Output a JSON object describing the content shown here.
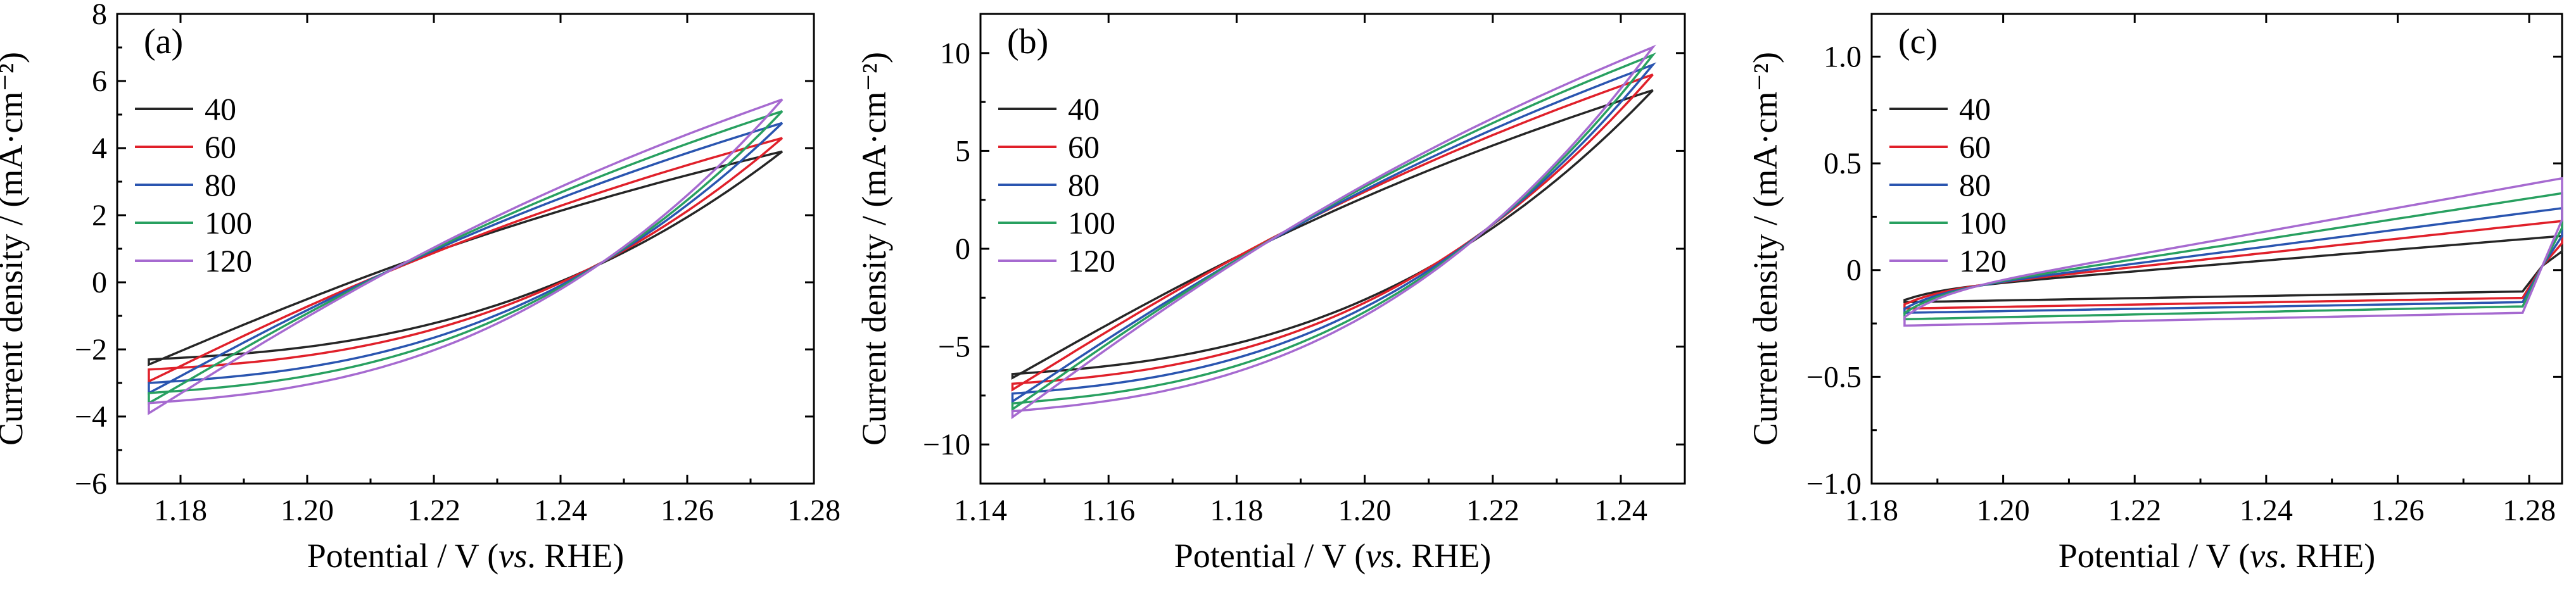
{
  "colors": {
    "40": "#262626",
    "60": "#e0202a",
    "80": "#2a55b0",
    "100": "#28a060",
    "120": "#a66ad0"
  },
  "chart_data": [
    {
      "type": "line",
      "panel_label": "(a)",
      "xlabel_pre": "Potential / V (",
      "xlabel_italic": "vs",
      "xlabel_post": ". RHE)",
      "ylabel": "Current density / (mA·cm⁻²)",
      "xlim": [
        1.17,
        1.28
      ],
      "ylim": [
        -6,
        8
      ],
      "x_ticks": [
        1.18,
        1.2,
        1.22,
        1.24,
        1.26,
        1.28
      ],
      "y_ticks": [
        -6,
        -4,
        -2,
        0,
        2,
        4,
        6,
        8
      ],
      "x_tick_labels": [
        "1.18",
        "1.20",
        "1.22",
        "1.24",
        "1.26",
        "1.28"
      ],
      "y_tick_labels": [
        "−6",
        "−4",
        "−2",
        "0",
        "2",
        "4",
        "6",
        "8"
      ],
      "legend": [
        "40",
        "60",
        "80",
        "100",
        "120"
      ],
      "legend_position": "top-left",
      "series": [
        {
          "name": "40",
          "x_min": 1.175,
          "x_max": 1.275,
          "j_max": 3.9,
          "j_min": -2.45,
          "j_min_return": -2.3
        },
        {
          "name": "60",
          "x_min": 1.175,
          "x_max": 1.275,
          "j_max": 4.3,
          "j_min": -2.95,
          "j_min_return": -2.6
        },
        {
          "name": "80",
          "x_min": 1.175,
          "x_max": 1.275,
          "j_max": 4.75,
          "j_min": -3.3,
          "j_min_return": -3.0
        },
        {
          "name": "100",
          "x_min": 1.175,
          "x_max": 1.275,
          "j_max": 5.1,
          "j_min": -3.6,
          "j_min_return": -3.3
        },
        {
          "name": "120",
          "x_min": 1.175,
          "x_max": 1.275,
          "j_max": 5.45,
          "j_min": -3.9,
          "j_min_return": -3.6
        }
      ]
    },
    {
      "type": "line",
      "panel_label": "(b)",
      "xlabel_pre": "Potential / V (",
      "xlabel_italic": "vs",
      "xlabel_post": ". RHE)",
      "ylabel": "Current density / (mA·cm⁻²)",
      "xlim": [
        1.14,
        1.25
      ],
      "ylim": [
        -12,
        12
      ],
      "x_ticks": [
        1.14,
        1.16,
        1.18,
        1.2,
        1.22,
        1.24
      ],
      "y_ticks": [
        -10,
        -5,
        0,
        5,
        10
      ],
      "x_tick_labels": [
        "1.14",
        "1.16",
        "1.18",
        "1.20",
        "1.22",
        "1.24"
      ],
      "y_tick_labels": [
        "−10",
        "−5",
        "0",
        "5",
        "10"
      ],
      "legend": [
        "40",
        "60",
        "80",
        "100",
        "120"
      ],
      "legend_position": "top-left",
      "series": [
        {
          "name": "40",
          "x_min": 1.145,
          "x_max": 1.245,
          "j_max": 8.1,
          "j_min": -6.6,
          "j_min_return": -6.4
        },
        {
          "name": "60",
          "x_min": 1.145,
          "x_max": 1.245,
          "j_max": 8.9,
          "j_min": -7.2,
          "j_min_return": -6.9
        },
        {
          "name": "80",
          "x_min": 1.145,
          "x_max": 1.245,
          "j_max": 9.4,
          "j_min": -7.8,
          "j_min_return": -7.4
        },
        {
          "name": "100",
          "x_min": 1.145,
          "x_max": 1.245,
          "j_max": 9.9,
          "j_min": -8.2,
          "j_min_return": -7.9
        },
        {
          "name": "120",
          "x_min": 1.145,
          "x_max": 1.245,
          "j_max": 10.3,
          "j_min": -8.6,
          "j_min_return": -8.3
        }
      ]
    },
    {
      "type": "line",
      "panel_label": "(c)",
      "xlabel_pre": "Potential / V (",
      "xlabel_italic": "vs",
      "xlabel_post": ". RHE)",
      "ylabel": "Current density / (mA·cm⁻²)",
      "xlim": [
        1.18,
        1.285
      ],
      "ylim": [
        -1.0,
        1.2
      ],
      "x_ticks": [
        1.18,
        1.2,
        1.22,
        1.24,
        1.26,
        1.28
      ],
      "y_ticks": [
        -1.0,
        -0.5,
        0,
        0.5,
        1.0
      ],
      "x_tick_labels": [
        "1.18",
        "1.20",
        "1.22",
        "1.24",
        "1.26",
        "1.28"
      ],
      "y_tick_labels": [
        "−1.0",
        "−0.5",
        "0",
        "0.5",
        "1.0"
      ],
      "legend": [
        "40",
        "60",
        "80",
        "100",
        "120"
      ],
      "legend_position": "top-left",
      "series": [
        {
          "name": "40",
          "x_min": 1.185,
          "x_max": 1.285,
          "j_upper_start": -0.14,
          "j_upper_end": 0.16,
          "j_lower_start": -0.15,
          "j_lower_end": -0.1
        },
        {
          "name": "60",
          "x_min": 1.185,
          "x_max": 1.285,
          "j_upper_start": -0.16,
          "j_upper_end": 0.23,
          "j_lower_start": -0.18,
          "j_lower_end": -0.13
        },
        {
          "name": "80",
          "x_min": 1.185,
          "x_max": 1.285,
          "j_upper_start": -0.18,
          "j_upper_end": 0.29,
          "j_lower_start": -0.2,
          "j_lower_end": -0.15
        },
        {
          "name": "100",
          "x_min": 1.185,
          "x_max": 1.285,
          "j_upper_start": -0.2,
          "j_upper_end": 0.36,
          "j_lower_start": -0.23,
          "j_lower_end": -0.17
        },
        {
          "name": "120",
          "x_min": 1.185,
          "x_max": 1.285,
          "j_upper_start": -0.22,
          "j_upper_end": 0.43,
          "j_lower_start": -0.26,
          "j_lower_end": -0.2
        }
      ]
    }
  ]
}
